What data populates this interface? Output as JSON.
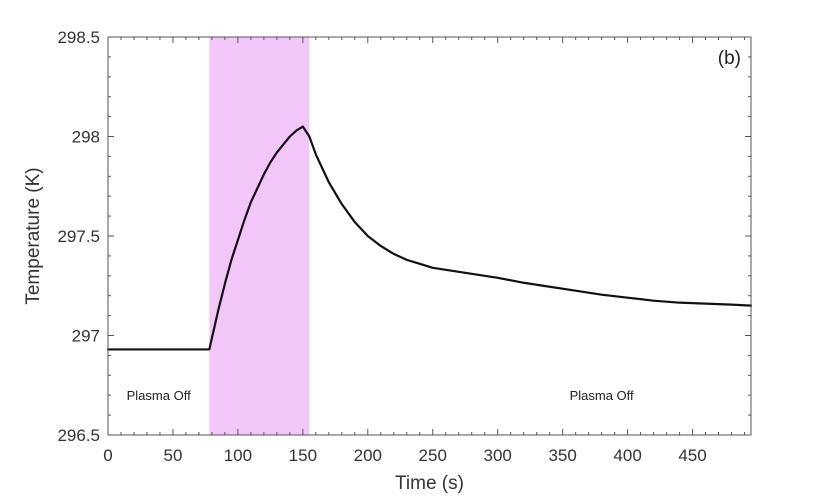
{
  "chart_data": {
    "type": "line",
    "title": "",
    "panel_label": "(b)",
    "xlabel": "Time (s)",
    "ylabel": "Temperature (K)",
    "xlim": [
      0,
      495
    ],
    "ylim": [
      296.5,
      298.5
    ],
    "xticks": [
      0,
      50,
      100,
      150,
      200,
      250,
      300,
      350,
      400,
      450
    ],
    "yticks": [
      296.5,
      297,
      297.5,
      298,
      298.5
    ],
    "ytick_labels": [
      "296.5",
      "297",
      "297.5",
      "298",
      "298.5"
    ],
    "grid": false,
    "shaded_region": {
      "x_start": 78,
      "x_end": 155,
      "color": "#f2c6f9",
      "meaning": "plasma on"
    },
    "annotations": [
      {
        "text": "Plasma Off",
        "x": 39,
        "y": 296.7
      },
      {
        "text": "Plasma Off",
        "x": 380,
        "y": 296.7
      }
    ],
    "series": [
      {
        "color": "#111111",
        "points": [
          [
            0,
            296.93
          ],
          [
            20,
            296.93
          ],
          [
            40,
            296.93
          ],
          [
            60,
            296.93
          ],
          [
            78,
            296.93
          ],
          [
            85,
            297.13
          ],
          [
            90,
            297.26
          ],
          [
            95,
            297.38
          ],
          [
            100,
            297.48
          ],
          [
            105,
            297.58
          ],
          [
            110,
            297.67
          ],
          [
            115,
            297.74
          ],
          [
            120,
            297.81
          ],
          [
            125,
            297.87
          ],
          [
            130,
            297.92
          ],
          [
            135,
            297.96
          ],
          [
            140,
            298.0
          ],
          [
            145,
            298.03
          ],
          [
            150,
            298.05
          ],
          [
            155,
            298.0
          ],
          [
            160,
            297.91
          ],
          [
            170,
            297.77
          ],
          [
            180,
            297.66
          ],
          [
            190,
            297.57
          ],
          [
            200,
            297.5
          ],
          [
            210,
            297.45
          ],
          [
            220,
            297.41
          ],
          [
            230,
            297.38
          ],
          [
            240,
            297.36
          ],
          [
            250,
            297.34
          ],
          [
            260,
            297.33
          ],
          [
            270,
            297.32
          ],
          [
            280,
            297.31
          ],
          [
            290,
            297.3
          ],
          [
            300,
            297.29
          ],
          [
            320,
            297.265
          ],
          [
            340,
            297.245
          ],
          [
            360,
            297.225
          ],
          [
            380,
            297.205
          ],
          [
            400,
            297.19
          ],
          [
            420,
            297.175
          ],
          [
            440,
            297.165
          ],
          [
            460,
            297.16
          ],
          [
            480,
            297.155
          ],
          [
            495,
            297.15
          ]
        ]
      }
    ]
  }
}
